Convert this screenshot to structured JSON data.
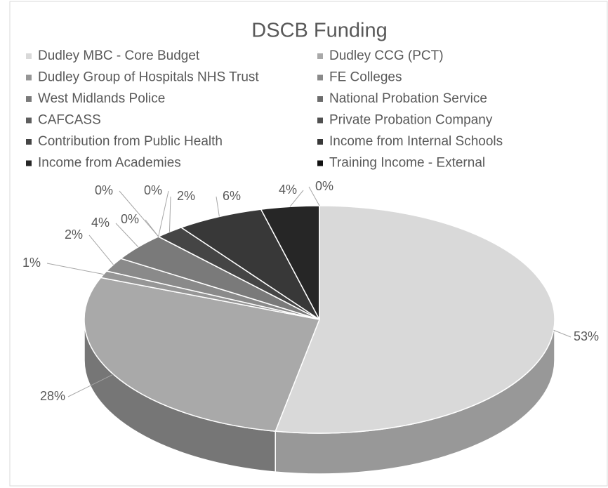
{
  "chart_data": {
    "type": "pie",
    "title": "DSCB Funding",
    "categories": [
      "Dudley MBC - Core Budget",
      "Dudley CCG (PCT)",
      "Dudley Group of Hospitals NHS Trust",
      "FE Colleges",
      "West Midlands Police",
      "National Probation Service",
      "CAFCASS",
      "Private Probation Company",
      "Contribution from Public Health",
      "Income from Internal Schools",
      "Income from Academies",
      "Training Income - External"
    ],
    "values": [
      53,
      28,
      1,
      2,
      4,
      0,
      0,
      0,
      2,
      6,
      4,
      0
    ],
    "value_labels": [
      "53%",
      "28%",
      "1%",
      "2%",
      "4%",
      "0%",
      "0%",
      "0%",
      "2%",
      "6%",
      "4%",
      "0%"
    ],
    "colors": [
      "#d9d9d9",
      "#a9a9a9",
      "#969696",
      "#8a8a8a",
      "#7a7a7a",
      "#6c6c6c",
      "#5e5e5e",
      "#505050",
      "#454545",
      "#383838",
      "#262626",
      "#111111"
    ],
    "legend": "top"
  }
}
